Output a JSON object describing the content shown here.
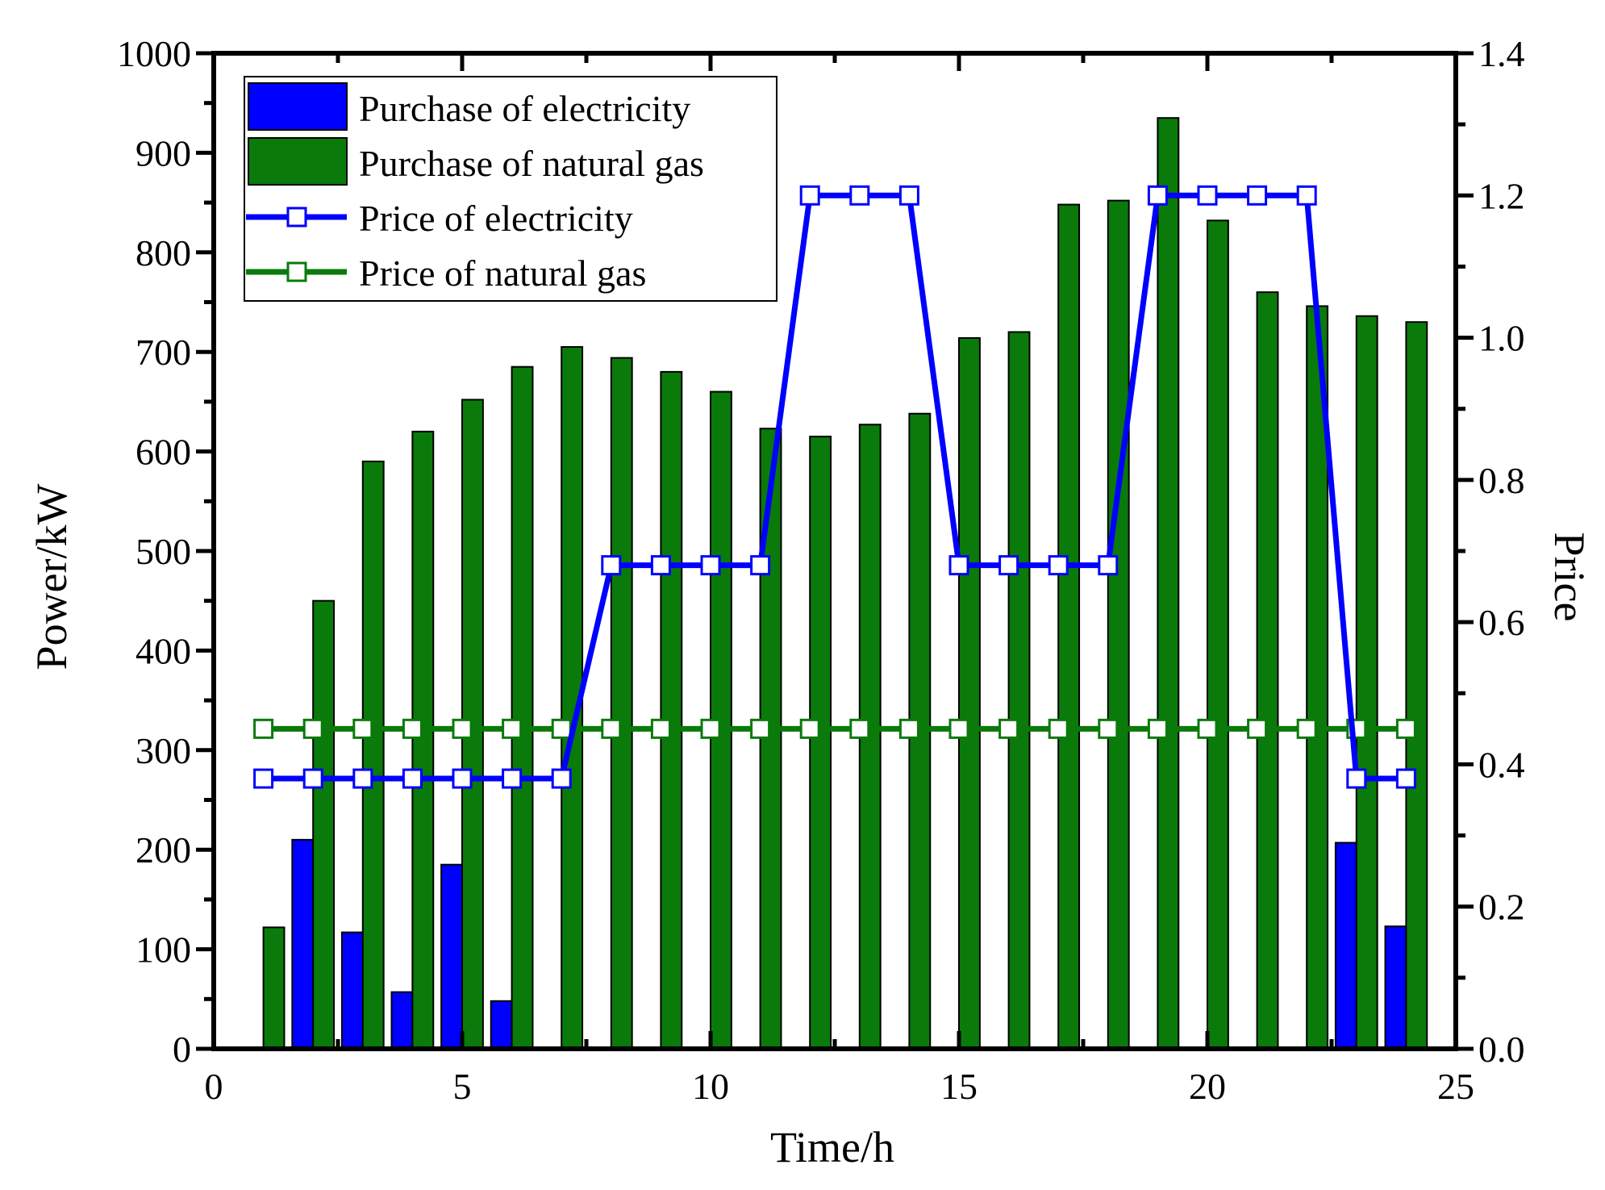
{
  "chart_data": {
    "type": "bar+line",
    "x_label": "Time/h",
    "y_left_label": "Power/kW",
    "y_right_label": "Price",
    "x_range": [
      0,
      25
    ],
    "x_ticks": [
      0,
      5,
      10,
      15,
      20,
      25
    ],
    "y_left_range": [
      0,
      1000
    ],
    "y_left_ticks": [
      0,
      100,
      200,
      300,
      400,
      500,
      600,
      700,
      800,
      900,
      1000
    ],
    "y_right_range": [
      0,
      1.4
    ],
    "y_right_ticks": [
      "0.0",
      "0.2",
      "0.4",
      "0.6",
      "0.8",
      "1.0",
      "1.2",
      "1.4"
    ],
    "x": [
      1,
      2,
      3,
      4,
      5,
      6,
      7,
      8,
      9,
      10,
      11,
      12,
      13,
      14,
      15,
      16,
      17,
      18,
      19,
      20,
      21,
      22,
      23,
      24
    ],
    "series": [
      {
        "name": "Purchase of electricity",
        "kind": "bar",
        "axis": "left",
        "color": "#0000ff",
        "values": [
          0,
          210,
          117,
          57,
          185,
          48,
          0,
          0,
          0,
          0,
          0,
          0,
          0,
          0,
          0,
          0,
          0,
          0,
          0,
          0,
          0,
          0,
          207,
          123
        ]
      },
      {
        "name": "Purchase of natural gas",
        "kind": "bar",
        "axis": "left",
        "color": "#0a7a0a",
        "values": [
          122,
          450,
          590,
          620,
          652,
          685,
          705,
          694,
          680,
          660,
          623,
          615,
          627,
          638,
          714,
          720,
          848,
          852,
          935,
          832,
          760,
          746,
          736,
          730
        ]
      },
      {
        "name": "Price of electricity",
        "kind": "line",
        "axis": "right",
        "color": "#0000ff",
        "values": [
          0.38,
          0.38,
          0.38,
          0.38,
          0.38,
          0.38,
          0.38,
          0.68,
          0.68,
          0.68,
          0.68,
          1.2,
          1.2,
          1.2,
          0.68,
          0.68,
          0.68,
          0.68,
          1.2,
          1.2,
          1.2,
          1.2,
          0.38,
          0.38
        ]
      },
      {
        "name": "Price of natural gas",
        "kind": "line",
        "axis": "right",
        "color": "#0a7a0a",
        "values": [
          0.45,
          0.45,
          0.45,
          0.45,
          0.45,
          0.45,
          0.45,
          0.45,
          0.45,
          0.45,
          0.45,
          0.45,
          0.45,
          0.45,
          0.45,
          0.45,
          0.45,
          0.45,
          0.45,
          0.45,
          0.45,
          0.45,
          0.45,
          0.45
        ]
      }
    ],
    "legend_position": "top-left"
  }
}
